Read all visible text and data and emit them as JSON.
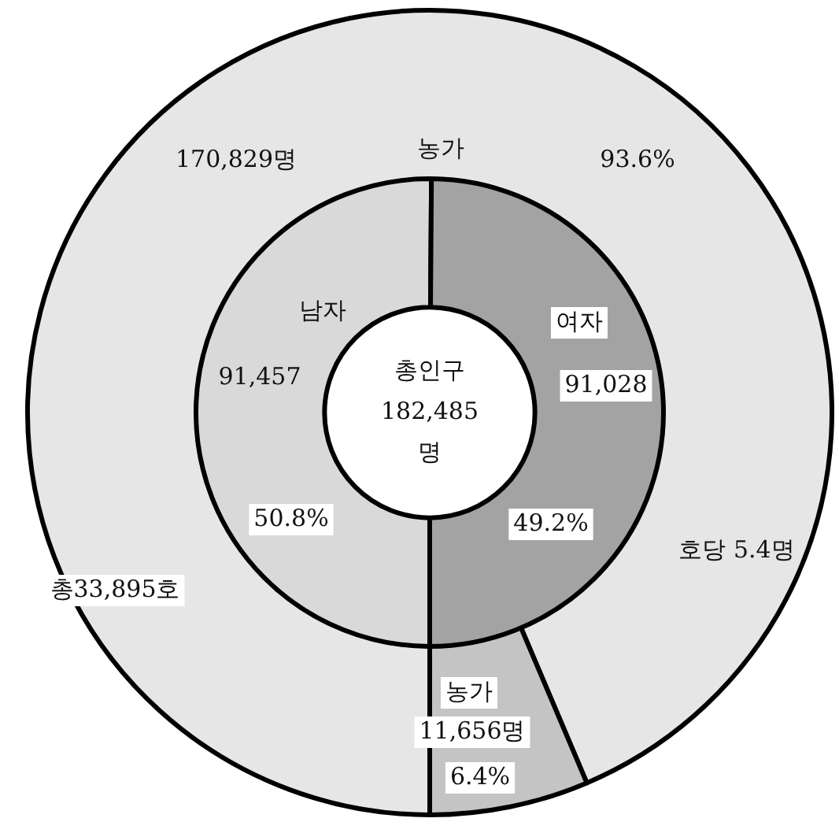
{
  "chart_data": [
    {
      "type": "donut",
      "categories": [
        "농가",
        "농가"
      ],
      "values": [
        170829,
        11656
      ],
      "colors": [
        "#e6e6e6",
        "#c4c4c4"
      ],
      "value_labels": [
        "170,829명",
        "11,656명"
      ],
      "annotations": [
        "93.6%",
        "6.4%",
        "호당 5.4명",
        "총33,895호"
      ]
    },
    {
      "type": "donut",
      "title": "총인구\n182,485\n명",
      "categories": [
        "남자",
        "여자"
      ],
      "values": [
        91457,
        91028
      ],
      "colors": [
        "#d9d9d9",
        "#a3a3a3"
      ],
      "value_labels": [
        "91,457",
        "91,028"
      ],
      "annotations": [
        "50.8%",
        "49.2%"
      ]
    }
  ]
}
